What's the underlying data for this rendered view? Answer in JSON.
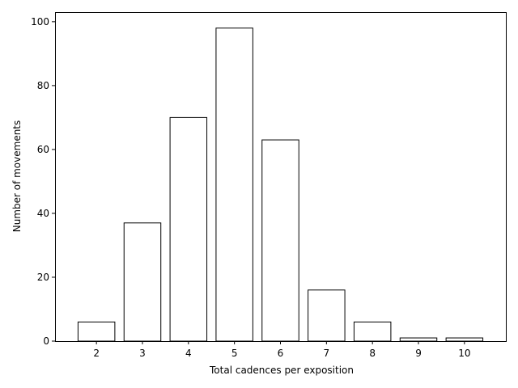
{
  "chart_data": {
    "type": "bar",
    "title": "",
    "xlabel": "Total cadences per exposition",
    "ylabel": "Number of movements",
    "categories": [
      "2",
      "3",
      "4",
      "5",
      "6",
      "7",
      "8",
      "9",
      "10"
    ],
    "values": [
      6,
      37,
      70,
      98,
      63,
      16,
      6,
      1,
      1
    ],
    "xlim": [
      1.1,
      10.9
    ],
    "ylim": [
      0,
      103
    ],
    "yticks": [
      0,
      20,
      40,
      60,
      80,
      100
    ],
    "bar_width": 0.8,
    "bar_fill": "#ffffff",
    "bar_edge": "#000000",
    "grid": false,
    "legend": "none"
  }
}
